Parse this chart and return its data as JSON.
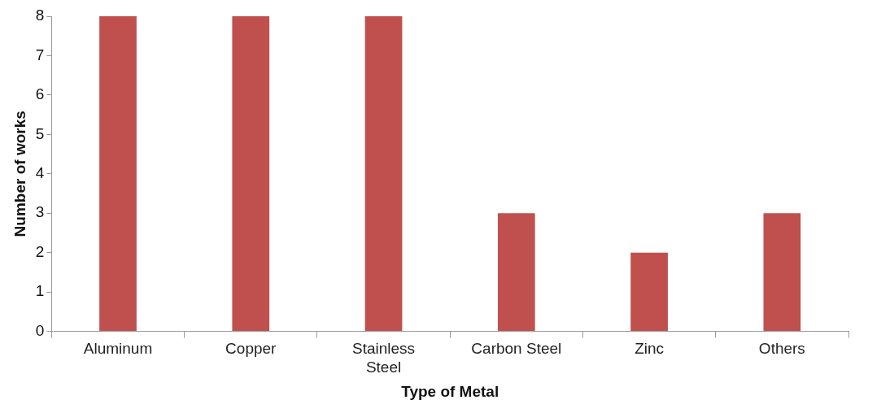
{
  "chart_data": {
    "type": "bar",
    "xlabel": "Type of Metal",
    "ylabel": "Number of works",
    "categories": [
      "Aluminum",
      "Copper",
      "Stainless Steel",
      "Carbon Steel",
      "Zinc",
      "Others"
    ],
    "values": [
      8,
      8,
      8,
      3,
      2,
      3
    ],
    "color": "#c0504d",
    "ylim": [
      0,
      8
    ],
    "yticks": [
      0,
      1,
      2,
      3,
      4,
      5,
      6,
      7,
      8
    ],
    "grid": false,
    "legend": false
  }
}
